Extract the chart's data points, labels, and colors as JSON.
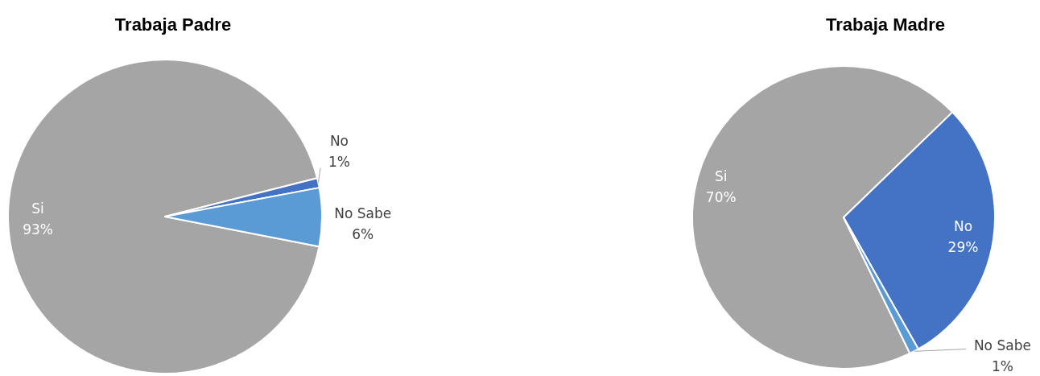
{
  "chart_data": [
    {
      "type": "pie",
      "title": "Trabaja Padre",
      "categories": [
        "Si",
        "No",
        "No Sabe"
      ],
      "values": [
        93,
        1,
        6
      ],
      "value_labels": [
        "93%",
        "1%",
        "6%"
      ],
      "colors": [
        "#a5a5a5",
        "#4472c4",
        "#5b9bd5"
      ]
    },
    {
      "type": "pie",
      "title": "Trabaja Madre",
      "categories": [
        "Si",
        "No",
        "No Sabe"
      ],
      "values": [
        70,
        29,
        1
      ],
      "value_labels": [
        "70%",
        "29%",
        "1%"
      ],
      "colors": [
        "#a5a5a5",
        "#4472c4",
        "#5b9bd5"
      ]
    }
  ]
}
